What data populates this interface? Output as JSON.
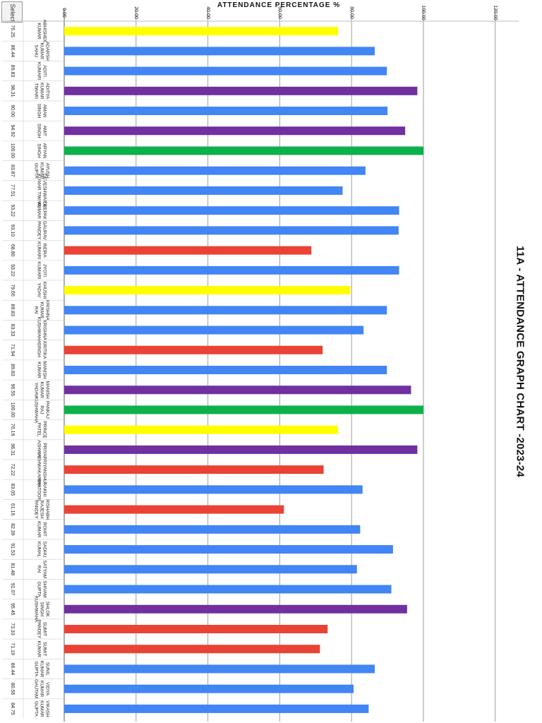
{
  "sheet_tab": "Select",
  "chart_data": {
    "type": "bar",
    "orientation": "horizontal",
    "title": "11A - ATTENDANCE GRAPH CHART -2023-24",
    "axis_title": "ATTENDANCE   PERCENTAGE %",
    "xlim": [
      0,
      120
    ],
    "ticks": [
      "0.00",
      "20.00",
      "40.00",
      "60.00",
      "80.00",
      "100.00",
      "120.00"
    ],
    "grid": true,
    "legend": "none",
    "colors": {
      "blue": "#4285f4",
      "red": "#ea4335",
      "yellow": "#ffff00",
      "green": "#0db14b",
      "purple": "#7030a0"
    },
    "bars": [
      {
        "name": "ABHISHEK KUMAR",
        "value": 76.25,
        "label": "76.25",
        "color": "yellow"
      },
      {
        "name": "ADARSH KUMAR SAHU",
        "value": 86.44,
        "label": "86.44",
        "color": "blue"
      },
      {
        "name": "ADITI KUMARI",
        "value": 89.83,
        "label": "89.83",
        "color": "blue"
      },
      {
        "name": "ADITYA KUMAR TIWARI",
        "value": 98.31,
        "label": "98.31",
        "color": "purple"
      },
      {
        "name": "AMAN SINGH",
        "value": 90.0,
        "label": "90.00",
        "color": "blue"
      },
      {
        "name": "AMIT SINGH",
        "value": 94.92,
        "label": "94.92",
        "color": "purple"
      },
      {
        "name": "ARYAN SINGH",
        "value": 100.0,
        "label": "100.00",
        "color": "green"
      },
      {
        "name": "AYUSH KUMAR GUPTA",
        "value": 83.87,
        "label": "83.87",
        "color": "blue"
      },
      {
        "name": "DEVESHWAR R KUMAR TIWARI",
        "value": 77.51,
        "label": "77.51",
        "color": "blue"
      },
      {
        "name": "DEEPAK KUMAR",
        "value": 93.22,
        "label": "93.22",
        "color": "blue"
      },
      {
        "name": "GAURAV PANDEY",
        "value": 93.1,
        "label": "93.10",
        "color": "blue"
      },
      {
        "name": "INDRA KUMARI",
        "value": 68.8,
        "label": "68.80",
        "color": "red"
      },
      {
        "name": "JYOTI KUMARI",
        "value": 93.22,
        "label": "93.22",
        "color": "blue"
      },
      {
        "name": "KHUSHI YADAV",
        "value": 79.66,
        "label": "79.66",
        "color": "yellow"
      },
      {
        "name": "KRISHNA KUMAR RAI",
        "value": 89.83,
        "label": "89.83",
        "color": "blue"
      },
      {
        "name": "KRISHNA KUSHWAHA",
        "value": 83.33,
        "label": "83.33",
        "color": "blue"
      },
      {
        "name": "KRITIKA SINGH",
        "value": 71.94,
        "label": "71.94",
        "color": "red"
      },
      {
        "name": "MANISH KUMAR",
        "value": 89.83,
        "label": "89.83",
        "color": "blue"
      },
      {
        "name": "MANISH KUMAR YADAV",
        "value": 96.55,
        "label": "96.55",
        "color": "purple"
      },
      {
        "name": "PANKAJ RAJ KUSHWAHA",
        "value": 100.0,
        "label": "100.00",
        "color": "green"
      },
      {
        "name": "PRINCE PATEL",
        "value": 76.19,
        "label": "76.19",
        "color": "yellow"
      },
      {
        "name": "PRIYA ASHWAL",
        "value": 98.31,
        "label": "98.31",
        "color": "purple"
      },
      {
        "name": "PRIYANSHU VISHWAKARMA",
        "value": 72.22,
        "label": "72.22",
        "color": "red"
      },
      {
        "name": "RAKHI KHATOON",
        "value": 83.05,
        "label": "83.05",
        "color": "blue"
      },
      {
        "name": "RISHABH RAJESH PANDEY",
        "value": 61.16,
        "label": "61.16",
        "color": "red"
      },
      {
        "name": "ROHIT KUMAR",
        "value": 82.39,
        "label": "82.39",
        "color": "blue"
      },
      {
        "name": "SADHU KUMAL",
        "value": 91.53,
        "label": "91.53",
        "color": "blue"
      },
      {
        "name": "SATYAM RAI",
        "value": 81.48,
        "label": "81.48",
        "color": "blue"
      },
      {
        "name": "SHIVAM GUPTA",
        "value": 91.07,
        "label": "91.07",
        "color": "blue"
      },
      {
        "name": "SHLOK SINGH KUSHWAHA",
        "value": 95.45,
        "label": "95.45",
        "color": "purple"
      },
      {
        "name": "SUMIT PANDEY",
        "value": 73.33,
        "label": "73.33",
        "color": "red"
      },
      {
        "name": "SUMIT KUMAR",
        "value": 71.19,
        "label": "71.19",
        "color": "red"
      },
      {
        "name": "SUNIL KUMAR GUPTA",
        "value": 86.44,
        "label": "86.44",
        "color": "blue"
      },
      {
        "name": "VIDYA KUMAR GAUTAM",
        "value": 80.56,
        "label": "80.56",
        "color": "blue"
      },
      {
        "name": "VIKASH KUMAR GUPTA",
        "value": 84.75,
        "label": "84.75",
        "color": "blue"
      }
    ]
  }
}
